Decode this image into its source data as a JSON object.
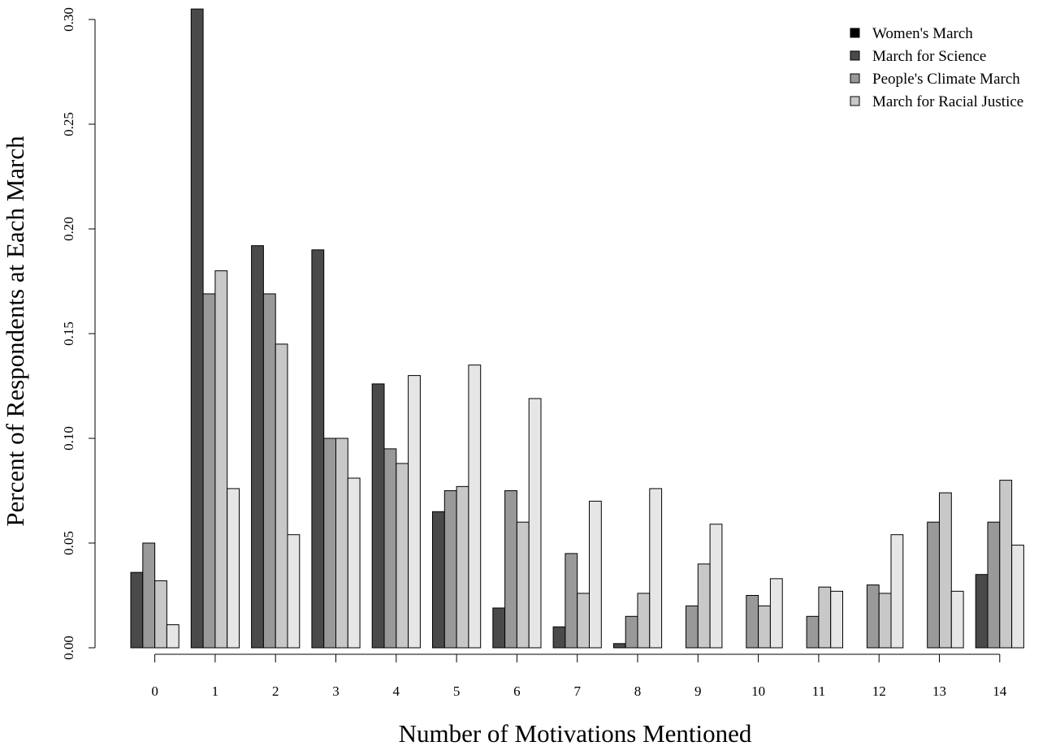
{
  "chart_data": {
    "type": "bar",
    "title": "",
    "xlabel": "Number of Motivations Mentioned",
    "ylabel": "Percent of Respondents at Each March",
    "categories": [
      "0",
      "1",
      "2",
      "3",
      "4",
      "5",
      "6",
      "7",
      "8",
      "9",
      "10",
      "11",
      "12",
      "13",
      "14"
    ],
    "ylim": [
      0,
      0.3
    ],
    "yticks": [
      "0.00",
      "0.05",
      "0.10",
      "0.15",
      "0.20",
      "0.25",
      "0.30"
    ],
    "grid": false,
    "legend_position": "top-right",
    "series": [
      {
        "name": "Women's March",
        "color": "#000000",
        "values": [
          0,
          0,
          0,
          0,
          0,
          0,
          0,
          0,
          0,
          0,
          0,
          0,
          0,
          0,
          0
        ]
      },
      {
        "name": "March for Science",
        "color": "#4a4a4a",
        "values": [
          0.036,
          0.305,
          0.192,
          0.19,
          0.126,
          0.065,
          0.019,
          0.01,
          0.002,
          0,
          0,
          0,
          0,
          0,
          0.035
        ]
      },
      {
        "name": "People's Climate March",
        "color": "#999999",
        "values": [
          0.05,
          0.169,
          0.169,
          0.1,
          0.095,
          0.075,
          0.075,
          0.045,
          0.015,
          0.02,
          0.025,
          0.015,
          0.03,
          0.06,
          0.06
        ]
      },
      {
        "name": "March for Racial Justice",
        "color": "#c8c8c8",
        "values": [
          0.032,
          0.18,
          0.145,
          0.1,
          0.088,
          0.077,
          0.06,
          0.026,
          0.026,
          0.04,
          0.02,
          0.029,
          0.026,
          0.074,
          0.08
        ]
      },
      {
        "name": "",
        "color": "#e6e6e6",
        "values": [
          0.011,
          0.076,
          0.054,
          0.081,
          0.13,
          0.135,
          0.119,
          0.07,
          0.076,
          0.059,
          0.033,
          0.027,
          0.054,
          0.027,
          0.049
        ]
      }
    ]
  }
}
